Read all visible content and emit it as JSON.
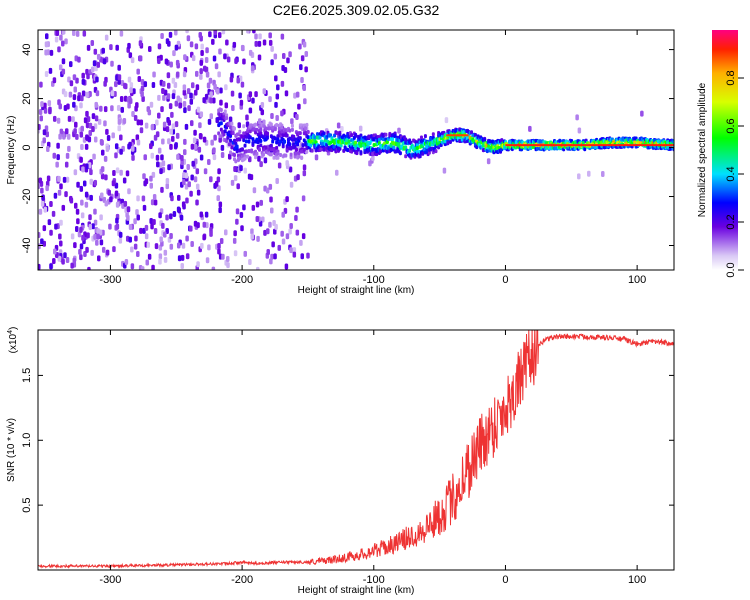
{
  "chart_data": [
    {
      "type": "heatmap",
      "title": "C2E6.2025.309.02.05.G32",
      "xlabel": "Height of straight line (km)",
      "ylabel": "Frequency (Hz)",
      "xlim": [
        -355,
        128
      ],
      "ylim": [
        -50,
        48
      ],
      "xticks": [
        -300,
        -200,
        -100,
        0,
        100
      ],
      "xtick_labels": [
        "-300",
        "-200",
        "-100",
        "0",
        "100"
      ],
      "yticks": [
        40,
        20,
        0,
        -20,
        -40
      ],
      "ytick_labels": [
        "40",
        "20",
        "0",
        "-20",
        "-40"
      ],
      "colorbar": {
        "label": "Normalized spectral amplitude",
        "range": [
          0,
          1
        ],
        "ticks": [
          0.0,
          0.2,
          0.4,
          0.6,
          0.8
        ],
        "tick_labels": [
          "0.0",
          "0.2",
          "0.4",
          "0.6",
          "0.8"
        ]
      },
      "ridge": {
        "x": [
          -215,
          -205,
          -195,
          -180,
          -160,
          -140,
          -120,
          -100,
          -85,
          -70,
          -60,
          -50,
          -40,
          -30,
          -20,
          -10,
          0,
          20,
          40,
          60,
          80,
          100,
          128
        ],
        "y": [
          10,
          0,
          3,
          3,
          2,
          3,
          2,
          1,
          2,
          -1,
          1,
          3,
          5,
          5,
          2,
          0,
          1,
          1,
          1,
          1,
          2,
          2,
          1
        ]
      }
    },
    {
      "type": "line",
      "xlabel": "Height of straight line (km)",
      "ylabel": "SNR (10 * v/v)",
      "y_multiplier": "(x10",
      "y_multiplier_exp": "4",
      "y_multiplier_close": ")",
      "xlim": [
        -355,
        128
      ],
      "ylim": [
        0,
        1.85
      ],
      "xticks": [
        -300,
        -200,
        -100,
        0,
        100
      ],
      "xtick_labels": [
        "-300",
        "-200",
        "-100",
        "0",
        "100"
      ],
      "yticks": [
        0.5,
        1.0,
        1.5
      ],
      "ytick_labels": [
        "0.5",
        "1.0",
        "1.5"
      ],
      "series": [
        {
          "name": "SNR",
          "color": "#ee3333",
          "x": [
            -355,
            -300,
            -250,
            -210,
            -200,
            -190,
            -170,
            -150,
            -130,
            -110,
            -100,
            -90,
            -80,
            -70,
            -60,
            -50,
            -40,
            -30,
            -20,
            -10,
            0,
            5,
            10,
            15,
            20,
            25,
            30,
            40,
            60,
            80,
            90,
            100,
            110,
            128
          ],
          "y": [
            0.03,
            0.03,
            0.04,
            0.05,
            0.06,
            0.05,
            0.06,
            0.06,
            0.08,
            0.12,
            0.15,
            0.18,
            0.22,
            0.27,
            0.33,
            0.42,
            0.55,
            0.75,
            0.95,
            1.1,
            1.25,
            1.35,
            1.45,
            1.55,
            1.65,
            1.72,
            1.78,
            1.8,
            1.8,
            1.79,
            1.78,
            1.74,
            1.76,
            1.75
          ]
        }
      ]
    }
  ]
}
